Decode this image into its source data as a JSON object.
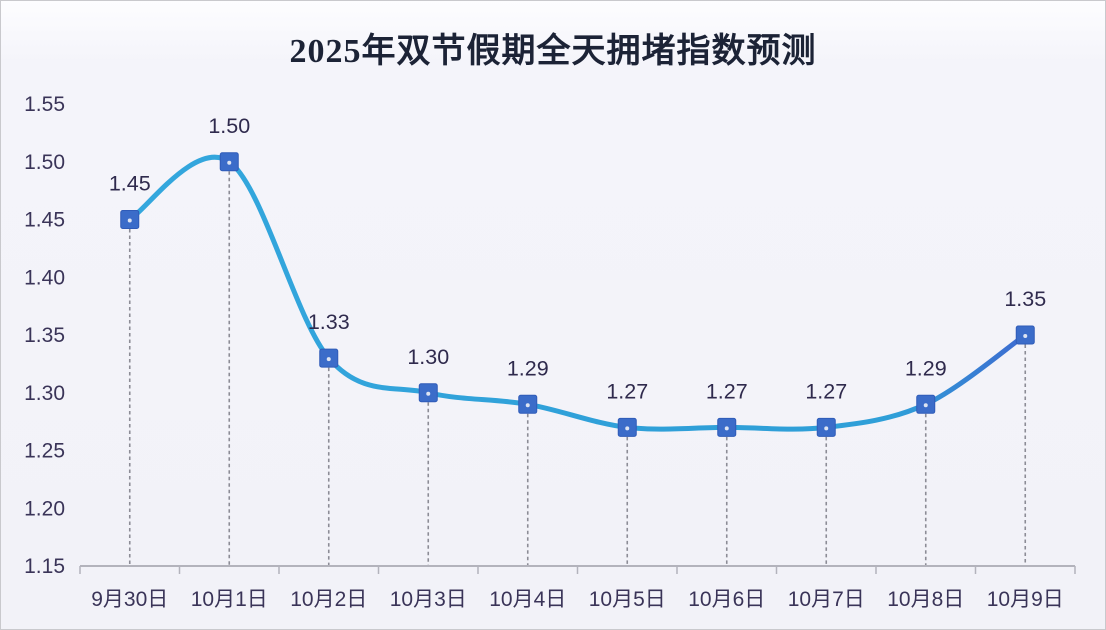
{
  "title": "2025年双节假期全天拥堵指数预测",
  "chart_data": {
    "type": "line",
    "title": "2025年双节假期全天拥堵指数预测",
    "xlabel": "",
    "ylabel": "",
    "categories": [
      "9月30日",
      "10月1日",
      "10月2日",
      "10月3日",
      "10月4日",
      "10月5日",
      "10月6日",
      "10月7日",
      "10月8日",
      "10月9日"
    ],
    "values": [
      1.45,
      1.5,
      1.33,
      1.3,
      1.29,
      1.27,
      1.27,
      1.27,
      1.29,
      1.35
    ],
    "data_labels": [
      "1.45",
      "1.50",
      "1.33",
      "1.30",
      "1.29",
      "1.27",
      "1.27",
      "1.27",
      "1.29",
      "1.35"
    ],
    "yticks": [
      "1.55",
      "1.50",
      "1.45",
      "1.40",
      "1.35",
      "1.30",
      "1.25",
      "1.20",
      "1.15"
    ],
    "ylim": [
      1.15,
      1.55
    ],
    "ytick_step": 0.05,
    "grid": false,
    "legend": "none",
    "line_style": "smooth",
    "marker": "square",
    "droplines": "dashed",
    "colors": {
      "line_start": "#34a8de",
      "line_mid": "#2f9fd8",
      "line_end": "#3c6ed1",
      "marker_fill": "#3b6cc9",
      "marker_stroke": "#2f5bb8",
      "marker_dot": "#dde4f2",
      "dropline": "#8c8c96",
      "axis_line": "#b3b3bc",
      "title_text": "#1c2336",
      "axis_text": "#3a3458",
      "label_text": "#2f2a4d",
      "background": "#f2f2f8"
    }
  }
}
